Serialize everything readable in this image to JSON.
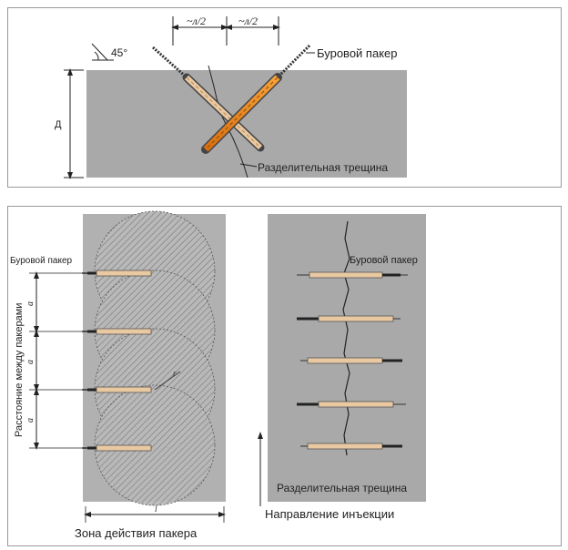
{
  "top": {
    "dim_left": "~л/2",
    "dim_right": "~л/2",
    "angle": "45°",
    "depth": "Д",
    "packer_label": "Буровой пакер",
    "crack_label": "Разделительная трещина"
  },
  "left": {
    "packer_label": "Буровой пакер",
    "spacing_axis": "Расстояние между пакерами",
    "spacing_marks": [
      "а",
      "а",
      "а"
    ],
    "radius_mark": "r",
    "width_mark": "l",
    "zone_label": "Зона действия пакера"
  },
  "right": {
    "packer_label": "Буровой пакер",
    "crack_label": "Разделительная трещина",
    "direction_label": "Направление инъекции"
  }
}
